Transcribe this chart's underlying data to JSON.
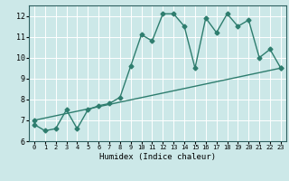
{
  "title": "",
  "xlabel": "Humidex (Indice chaleur)",
  "bg_color": "#cce8e8",
  "grid_color": "#ffffff",
  "line_color": "#2e7d6e",
  "xlim": [
    -0.5,
    23.5
  ],
  "ylim": [
    6.0,
    12.5
  ],
  "yticks": [
    6,
    7,
    8,
    9,
    10,
    11,
    12
  ],
  "xticks": [
    0,
    1,
    2,
    3,
    4,
    5,
    6,
    7,
    8,
    9,
    10,
    11,
    12,
    13,
    14,
    15,
    16,
    17,
    18,
    19,
    20,
    21,
    22,
    23
  ],
  "series1_x": [
    0,
    1,
    2,
    3,
    4,
    5,
    6,
    7,
    8,
    9,
    10,
    11,
    12,
    13,
    14,
    15,
    16,
    17,
    18,
    19,
    20,
    21,
    22,
    23
  ],
  "series1_y": [
    6.8,
    6.5,
    6.6,
    7.5,
    6.6,
    7.5,
    7.7,
    7.8,
    8.1,
    9.6,
    11.1,
    10.8,
    12.1,
    12.1,
    11.5,
    9.5,
    11.9,
    11.2,
    12.1,
    11.5,
    11.8,
    10.0,
    10.4,
    9.5
  ],
  "series2_x": [
    0,
    23
  ],
  "series2_y": [
    7.0,
    9.5
  ],
  "marker_size": 2.5,
  "line_width": 1.0
}
